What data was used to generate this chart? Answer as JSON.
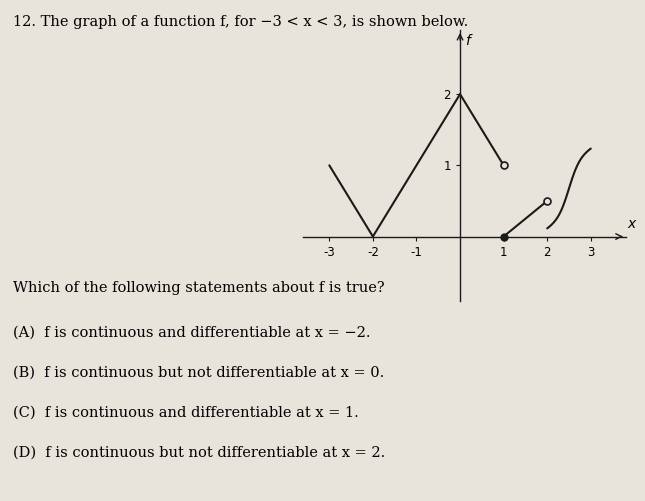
{
  "title": "12. The graph of a function f, for −3 < x < 3, is shown below.",
  "question": "Which of the following statements about f is true?",
  "choices": [
    "(A)  f is continuous and differentiable at x = −2.",
    "(B)  f is continuous but not differentiable at x = 0.",
    "(C)  f is continuous and differentiable at x = 1.",
    "(D)  f is continuous but not differentiable at x = 2."
  ],
  "background_color": "#e8e4dc",
  "line_color": "#1a1a1a",
  "axis_color": "#1a1a1a",
  "xlim": [
    -3.6,
    3.8
  ],
  "ylim": [
    -0.9,
    2.9
  ],
  "xticks": [
    -3,
    -2,
    -1,
    1,
    2,
    3
  ],
  "yticks": [
    1,
    2
  ],
  "xlabel": "x",
  "ylabel": "f",
  "graph_figsize": [
    6.45,
    5.01
  ],
  "graph_dpi": 100
}
